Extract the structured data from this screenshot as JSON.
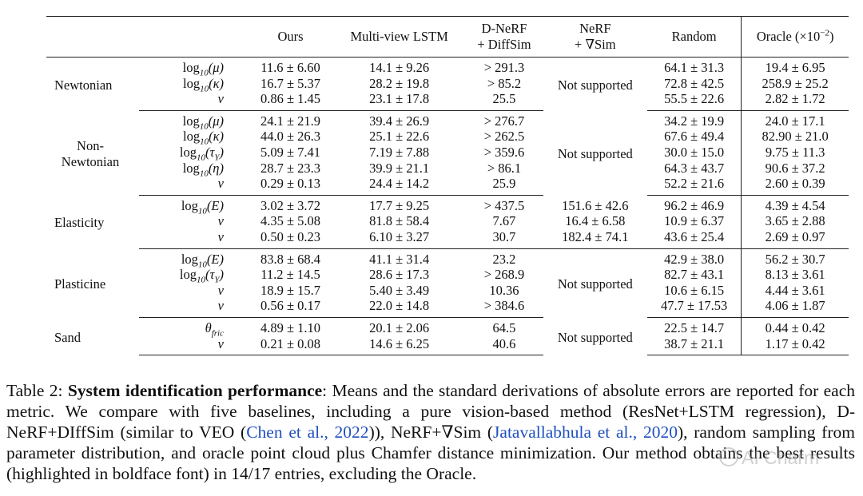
{
  "table": {
    "headers": {
      "ours": "Ours",
      "mv_lstm": "Multi-view LSTM",
      "dnerf_line1": "D-NeRF",
      "dnerf_line2": "+ DiffSim",
      "nerf_line1": "NeRF",
      "nerf_line2": "+ ∇Sim",
      "random": "Random",
      "oracle": "Oracle (×10",
      "oracle_exp": "−2",
      "oracle_end": ")"
    },
    "not_supported": "Not supported",
    "groups": {
      "newtonian": {
        "name": "Newtonian",
        "rows": [
          {
            "fn": "log",
            "sub": "10",
            "arg": "(μ)",
            "ours": "11.6 ± 6.60",
            "lstm": "14.1 ± 9.26",
            "dnerf": "> 291.3",
            "random": "64.1 ± 31.3",
            "oracle": "19.4 ± 6.95"
          },
          {
            "fn": "log",
            "sub": "10",
            "arg": "(κ)",
            "ours": "16.7 ± 5.37",
            "lstm": "28.2 ± 19.8",
            "dnerf": "> 85.2",
            "random": "72.8 ± 42.5",
            "oracle": "258.9 ± 25.2"
          },
          {
            "sym": "v",
            "ours": "0.86 ± 1.45",
            "lstm": "23.1 ± 17.8",
            "dnerf": "25.5",
            "random": "55.5 ± 22.6",
            "oracle": "2.82 ± 1.72"
          }
        ]
      },
      "non_newtonian": {
        "name_line1": "Non-",
        "name_line2": "Newtonian",
        "rows": [
          {
            "fn": "log",
            "sub": "10",
            "arg": "(μ)",
            "ours": "24.1 ± 21.9",
            "lstm": "39.4 ± 26.9",
            "dnerf": "> 276.7",
            "random": "34.2 ± 19.9",
            "oracle": "24.0 ± 17.1"
          },
          {
            "fn": "log",
            "sub": "10",
            "arg": "(κ)",
            "ours": "44.0 ± 26.3",
            "lstm": "25.1 ± 22.6",
            "dnerf": "> 262.5",
            "random": "67.6 ± 49.4",
            "oracle": "82.90 ± 21.0"
          },
          {
            "fn": "log",
            "sub": "10",
            "arg": "(τ",
            "argsub": "Y",
            "argend": ")",
            "ours": "5.09 ± 7.41",
            "lstm": "7.19 ± 7.88",
            "dnerf": "> 359.6",
            "random": "30.0 ± 15.0",
            "oracle": "9.75 ± 11.3"
          },
          {
            "fn": "log",
            "sub": "10",
            "arg": "(η)",
            "ours": "28.7 ± 23.3",
            "lstm": "39.9 ± 21.1",
            "dnerf": "> 86.1",
            "random": "64.3 ± 43.7",
            "oracle": "90.6 ± 37.2"
          },
          {
            "sym": "v",
            "ours": "0.29 ± 0.13",
            "lstm": "24.4 ± 14.2",
            "dnerf": "25.9",
            "random": "52.2 ± 21.6",
            "oracle": "2.60 ± 0.39"
          }
        ]
      },
      "elasticity": {
        "name": "Elasticity",
        "rows": [
          {
            "fn": "log",
            "sub": "10",
            "arg": "(E)",
            "ours": "3.02 ± 3.72",
            "lstm": "17.7 ± 9.25",
            "dnerf": "> 437.5",
            "nerf": "151.6 ± 42.6",
            "random": "96.2 ± 46.9",
            "oracle": "4.39 ± 4.54"
          },
          {
            "sym": "ν",
            "ours": "4.35 ± 5.08",
            "lstm": "81.8 ± 58.4",
            "dnerf": "7.67",
            "nerf": "16.4 ± 6.58",
            "random": "10.9 ± 6.37",
            "oracle": "3.65 ± 2.88"
          },
          {
            "sym": "v",
            "ours": "0.50 ± 0.23",
            "lstm": "6.10 ± 3.27",
            "dnerf": "30.7",
            "nerf": "182.4 ± 74.1",
            "random": "43.6 ± 25.4",
            "oracle": "2.69 ± 0.97"
          }
        ]
      },
      "plasticine": {
        "name": "Plasticine",
        "rows": [
          {
            "fn": "log",
            "sub": "10",
            "arg": "(E)",
            "ours": "83.8 ± 68.4",
            "lstm": "41.1 ± 31.4",
            "dnerf": "23.2",
            "random": "42.9 ± 38.0",
            "oracle": "56.2 ± 30.7"
          },
          {
            "fn": "log",
            "sub": "10",
            "arg": "(τ",
            "argsub": "Y",
            "argend": ")",
            "ours": "11.2 ± 14.5",
            "lstm": "28.6 ± 17.3",
            "dnerf": "> 268.9",
            "random": "82.7 ± 43.1",
            "oracle": "8.13 ± 3.61"
          },
          {
            "sym": "ν",
            "ours": "18.9 ± 15.7",
            "lstm": "5.40 ± 3.49",
            "dnerf": "10.36",
            "random": "10.6 ± 6.15",
            "oracle": "4.44 ± 3.61"
          },
          {
            "sym": "v",
            "ours": "0.56 ± 0.17",
            "lstm": "22.0 ± 14.8",
            "dnerf": "> 384.6",
            "random": "47.7 ± 17.53",
            "oracle": "4.06 ± 1.87"
          }
        ]
      },
      "sand": {
        "name": "Sand",
        "rows": [
          {
            "sym": "θ",
            "symsub": "fric",
            "ours": "4.89 ± 1.10",
            "lstm": "20.1 ± 2.06",
            "dnerf": "64.5",
            "random": "22.5 ± 14.7",
            "oracle": "0.44 ± 0.42"
          },
          {
            "sym": "v",
            "ours": "0.21 ± 0.08",
            "lstm": "14.6 ± 6.25",
            "dnerf": "40.6",
            "random": "38.7 ± 21.1",
            "oracle": "1.17 ± 0.42"
          }
        ]
      }
    }
  },
  "caption": {
    "label": "Table 2: ",
    "lead": "System identification performance",
    "part1": ": Means and the standard derivations of absolute errors are reported for each metric. We compare with five baselines, including a pure vision-based method (ResNet+LSTM regression), D-NeRF+DIffSim (similar to VEO (",
    "cite1": "Chen et al., 2022",
    "part2": ")), NeRF+∇Sim (",
    "cite2": "Jatavallabhula et al., 2020",
    "part3": "), random sampling from parameter distribution, and oracle point cloud plus Chamfer distance minimization. Our method obtains the best results (highlighted in boldface font) in 14/17 entries, excluding the Oracle."
  },
  "watermark": "AI Charm",
  "colors": {
    "citation": "#1f4fbf",
    "rule": "#222222"
  }
}
